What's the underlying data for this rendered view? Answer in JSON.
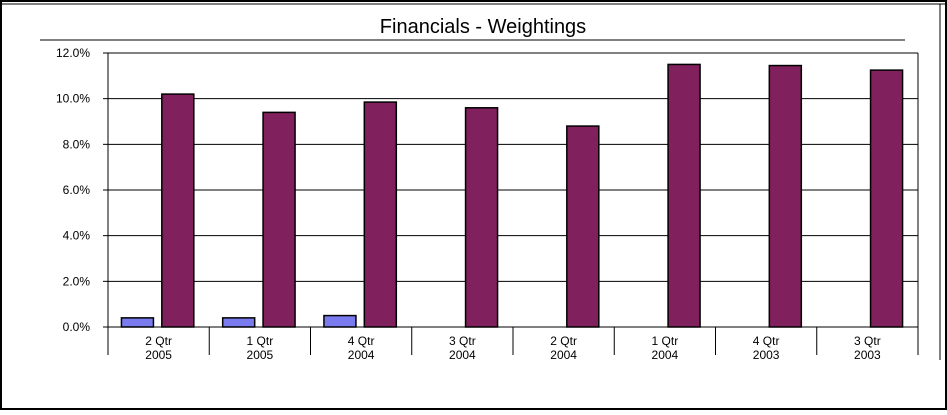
{
  "chart_data": {
    "type": "bar",
    "title": "Financials  -  Weightings",
    "xlabel": "",
    "ylabel": "",
    "categories": [
      [
        "2 Qtr",
        "2005"
      ],
      [
        "1 Qtr",
        "2005"
      ],
      [
        "4 Qtr",
        "2004"
      ],
      [
        "3 Qtr",
        "2004"
      ],
      [
        "2 Qtr",
        "2004"
      ],
      [
        "1 Qtr",
        "2004"
      ],
      [
        "4 Qtr",
        "2003"
      ],
      [
        "3 Qtr",
        "2003"
      ]
    ],
    "series": [
      {
        "color": "#7B7BF0",
        "values": [
          0.4,
          0.4,
          0.5,
          null,
          null,
          null,
          null,
          null
        ]
      },
      {
        "color": "#80205C",
        "values": [
          10.2,
          9.4,
          9.85,
          9.6,
          8.8,
          11.5,
          11.45,
          11.25
        ]
      }
    ],
    "ylim": [
      0,
      12
    ],
    "yticks": [
      0,
      2,
      4,
      6,
      8,
      10,
      12
    ],
    "ytick_labels": [
      "0.0%",
      "2.0%",
      "4.0%",
      "6.0%",
      "8.0%",
      "10.0%",
      "12.0%"
    ],
    "grid": true,
    "legend": "none"
  }
}
